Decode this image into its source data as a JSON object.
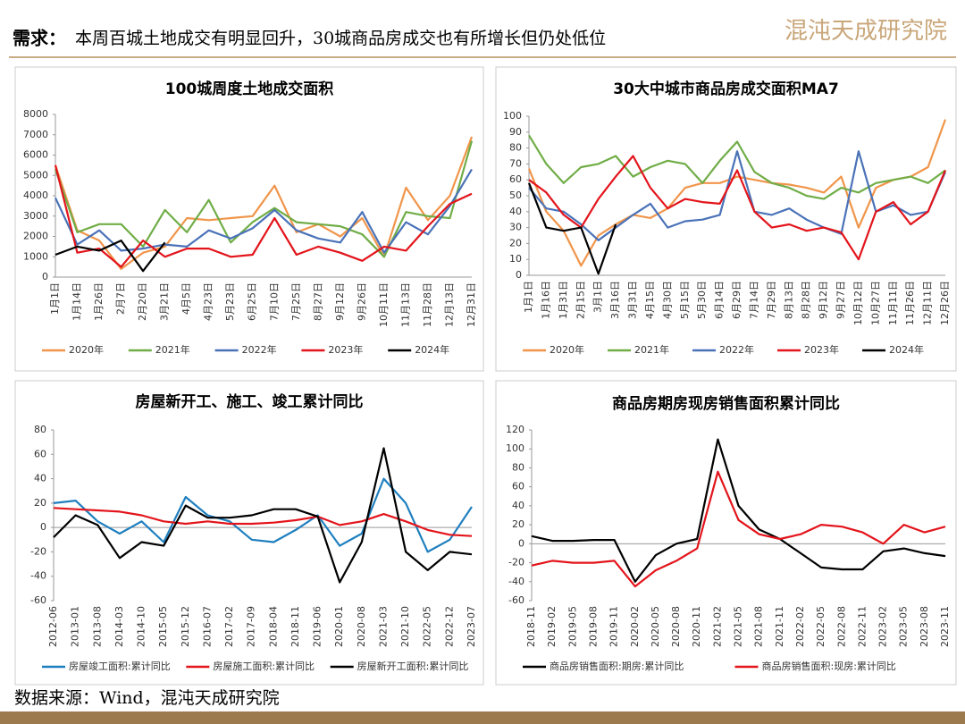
{
  "header": {
    "title_prefix": "需求：",
    "title": "本周百城土地成交有明显回升，30城商品房成交也有所增长但仍处低位",
    "logo": "混沌天成研究院"
  },
  "footer": {
    "source": "数据来源：Wind，混沌天成研究院"
  },
  "chart_data": [
    {
      "type": "line",
      "title": "100城周度土地成交面积",
      "legend": "bottom",
      "categories": [
        "1月1日",
        "1月14日",
        "1月26日",
        "2月7日",
        "2月20日",
        "3月21日",
        "4月5日",
        "4月23日",
        "5月23日",
        "6月25日",
        "7月10日",
        "7月25日",
        "8月27日",
        "9月12日",
        "9月26日",
        "10月11日",
        "11月13日",
        "11月28日",
        "12月13日",
        "12月31日"
      ],
      "ylim": [
        0,
        8000
      ],
      "yticks": [
        0,
        1000,
        2000,
        3000,
        4000,
        5000,
        6000,
        7000,
        8000
      ],
      "series": [
        {
          "name": "2020年",
          "color": "#f0954a",
          "values": [
            5500,
            2300,
            1800,
            400,
            1200,
            1500,
            2900,
            2800,
            2900,
            3000,
            4500,
            2200,
            2600,
            2000,
            2900,
            1000,
            4400,
            2800,
            4000,
            6900
          ]
        },
        {
          "name": "2021年",
          "color": "#70ad47",
          "values": [
            5300,
            2200,
            2600,
            2600,
            1500,
            3300,
            2200,
            3800,
            1700,
            2700,
            3400,
            2700,
            2600,
            2500,
            2100,
            1000,
            3200,
            3000,
            2900,
            6700
          ]
        },
        {
          "name": "2022年",
          "color": "#4a72b8",
          "values": [
            3900,
            1600,
            2300,
            1300,
            1400,
            1600,
            1500,
            2300,
            1900,
            2400,
            3300,
            2300,
            1900,
            1700,
            3200,
            1200,
            2700,
            2100,
            3500,
            5300
          ]
        },
        {
          "name": "2023年",
          "color": "#e3141b",
          "values": [
            5500,
            1200,
            1400,
            500,
            1800,
            1000,
            1400,
            1400,
            1000,
            1100,
            2900,
            1100,
            1500,
            1200,
            800,
            1500,
            1300,
            2500,
            3600,
            4100
          ]
        },
        {
          "name": "2024年",
          "color": "#000000",
          "values": [
            1100,
            1500,
            1300,
            1800,
            300,
            1700,
            null,
            null,
            null,
            null,
            null,
            null,
            null,
            null,
            null,
            null,
            null,
            null,
            null,
            null
          ]
        }
      ]
    },
    {
      "type": "line",
      "title": "30大中城市商品房成交面积MA7",
      "legend": "bottom",
      "categories": [
        "1月1日",
        "1月16日",
        "1月31日",
        "2月15日",
        "3月1日",
        "3月16日",
        "3月31日",
        "4月15日",
        "4月30日",
        "5月15日",
        "5月30日",
        "6月14日",
        "6月29日",
        "7月14日",
        "7月29日",
        "8月13日",
        "8月28日",
        "9月12日",
        "9月27日",
        "10月12日",
        "10月27日",
        "11月11日",
        "11月26日",
        "12月11日",
        "12月26日"
      ],
      "ylim": [
        0,
        100
      ],
      "yticks": [
        0,
        10,
        20,
        30,
        40,
        50,
        60,
        70,
        80,
        90,
        100
      ],
      "series": [
        {
          "name": "2020年",
          "color": "#f0954a",
          "values": [
            67,
            40,
            28,
            6,
            25,
            32,
            38,
            36,
            42,
            55,
            58,
            58,
            62,
            60,
            58,
            57,
            55,
            52,
            62,
            30,
            55,
            60,
            62,
            68,
            98
          ]
        },
        {
          "name": "2021年",
          "color": "#70ad47",
          "values": [
            88,
            70,
            58,
            68,
            70,
            75,
            62,
            68,
            72,
            70,
            58,
            72,
            84,
            65,
            58,
            55,
            50,
            48,
            55,
            52,
            58,
            60,
            62,
            58,
            66
          ]
        },
        {
          "name": "2022年",
          "color": "#4a72b8",
          "values": [
            55,
            42,
            40,
            32,
            22,
            30,
            38,
            45,
            30,
            34,
            35,
            38,
            78,
            40,
            38,
            42,
            35,
            30,
            26,
            78,
            40,
            44,
            38,
            40,
            65
          ]
        },
        {
          "name": "2023年",
          "color": "#e3141b",
          "values": [
            60,
            52,
            38,
            30,
            48,
            62,
            75,
            55,
            42,
            48,
            46,
            45,
            66,
            40,
            30,
            32,
            28,
            30,
            27,
            10,
            40,
            46,
            32,
            40,
            66
          ]
        },
        {
          "name": "2024年",
          "color": "#000000",
          "values": [
            58,
            30,
            28,
            30,
            1,
            32,
            null,
            null,
            null,
            null,
            null,
            null,
            null,
            null,
            null,
            null,
            null,
            null,
            null,
            null,
            null,
            null,
            null,
            null,
            null
          ]
        }
      ]
    },
    {
      "type": "line",
      "title": "房屋新开工、施工、竣工累计同比",
      "legend": "bottom",
      "categories": [
        "2012-06",
        "2013-01",
        "2013-08",
        "2014-03",
        "2014-10",
        "2015-05",
        "2015-12",
        "2016-07",
        "2017-02",
        "2017-09",
        "2018-04",
        "2018-11",
        "2019-06",
        "2020-01",
        "2020-08",
        "2021-03",
        "2021-10",
        "2022-05",
        "2022-12",
        "2023-07"
      ],
      "ylim": [
        -60,
        80
      ],
      "yticks": [
        -60,
        -40,
        -20,
        0,
        20,
        40,
        60,
        80
      ],
      "series": [
        {
          "name": "房屋竣工面积:累计同比",
          "color": "#1f7fbf",
          "values": [
            20,
            22,
            5,
            -5,
            5,
            -12,
            25,
            10,
            5,
            -10,
            -12,
            -2,
            10,
            -15,
            -5,
            40,
            20,
            -20,
            -10,
            17
          ]
        },
        {
          "name": "房屋施工面积:累计同比",
          "color": "#e3141b",
          "values": [
            16,
            15,
            14,
            13,
            10,
            5,
            3,
            5,
            3,
            3,
            4,
            6,
            9,
            2,
            5,
            11,
            5,
            -2,
            -6,
            -7
          ]
        },
        {
          "name": "房屋新开工面积:累计同比",
          "color": "#000000",
          "values": [
            -8,
            10,
            2,
            -25,
            -12,
            -15,
            18,
            8,
            8,
            10,
            15,
            15,
            9,
            -45,
            -12,
            65,
            -20,
            -35,
            -20,
            -22
          ]
        }
      ]
    },
    {
      "type": "line",
      "title": "商品房期房现房销售面积累计同比",
      "legend": "bottom",
      "categories": [
        "2018-11",
        "2019-02",
        "2019-05",
        "2019-08",
        "2019-11",
        "2020-02",
        "2020-05",
        "2020-08",
        "2020-11",
        "2021-02",
        "2021-05",
        "2021-08",
        "2021-11",
        "2022-02",
        "2022-05",
        "2022-08",
        "2022-11",
        "2023-02",
        "2023-05",
        "2023-08",
        "2023-11"
      ],
      "ylim": [
        -60,
        120
      ],
      "yticks": [
        -60,
        -40,
        -20,
        0,
        20,
        40,
        60,
        80,
        100,
        120
      ],
      "series": [
        {
          "name": "商品房销售面积:期房:累计同比",
          "color": "#000000",
          "values": [
            8,
            3,
            3,
            4,
            4,
            -40,
            -12,
            0,
            5,
            110,
            40,
            15,
            5,
            -10,
            -25,
            -27,
            -27,
            -8,
            -5,
            -10,
            -13
          ]
        },
        {
          "name": "商品房销售面积:现房:累计同比",
          "color": "#e3141b",
          "values": [
            -23,
            -18,
            -20,
            -20,
            -18,
            -45,
            -28,
            -18,
            -5,
            76,
            25,
            10,
            5,
            10,
            20,
            18,
            12,
            0,
            20,
            12,
            18
          ]
        }
      ]
    }
  ]
}
